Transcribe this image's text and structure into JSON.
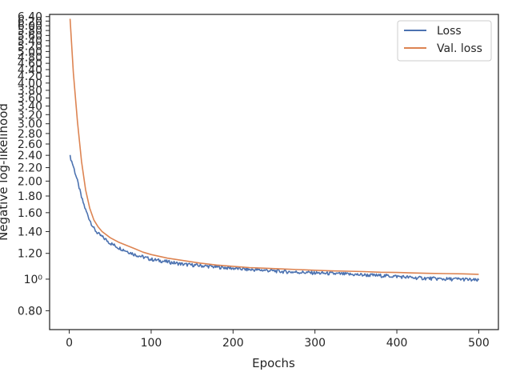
{
  "chart_data": {
    "type": "line",
    "title": "",
    "xlabel": "Epochs",
    "ylabel": "Negative log-likelihood",
    "xlim": [
      -24,
      524
    ],
    "ylim": [
      0.7,
      6.5
    ],
    "y_scale": "log",
    "grid": false,
    "legend_position": "top-right",
    "x_ticks": [
      0,
      100,
      200,
      300,
      400,
      500
    ],
    "x_tick_labels": [
      "0",
      "100",
      "200",
      "300",
      "400",
      "500"
    ],
    "y_ticks": [
      0.8,
      1.0,
      1.2,
      1.4,
      1.6,
      1.8,
      2.0,
      2.2,
      2.4,
      2.6,
      2.8,
      3.0,
      3.2,
      3.4,
      3.6,
      3.8,
      4.0,
      4.2,
      4.4,
      4.6,
      4.8,
      5.0,
      5.2,
      5.4,
      5.6,
      5.8,
      6.0,
      6.2,
      6.4
    ],
    "y_tick_labels": [
      "0.80",
      "10⁰",
      "1.20",
      "1.40",
      "1.60",
      "1.80",
      "2.00",
      "2.20",
      "2.40",
      "2.60",
      "2.80",
      "3.00",
      "3.20",
      "3.40",
      "3.60",
      "3.80",
      "4.00",
      "4.20",
      "4.40",
      "4.60",
      "4.80",
      "5.00",
      "5.20",
      "5.40",
      "5.60",
      "5.80",
      "6.00",
      "6.20",
      "6.40"
    ],
    "series": [
      {
        "name": "Loss",
        "color": "#4c72b0",
        "x": [
          1,
          5,
          10,
          15,
          20,
          25,
          30,
          35,
          40,
          50,
          60,
          70,
          80,
          90,
          100,
          120,
          140,
          160,
          180,
          200,
          220,
          240,
          260,
          280,
          300,
          320,
          340,
          360,
          380,
          400,
          420,
          440,
          460,
          480,
          500
        ],
        "y": [
          2.38,
          2.22,
          2.0,
          1.78,
          1.63,
          1.52,
          1.43,
          1.38,
          1.35,
          1.29,
          1.25,
          1.22,
          1.19,
          1.17,
          1.15,
          1.13,
          1.11,
          1.1,
          1.09,
          1.08,
          1.07,
          1.065,
          1.055,
          1.05,
          1.045,
          1.04,
          1.035,
          1.03,
          1.025,
          1.02,
          1.01,
          1.005,
          1.0,
          1.0,
          0.99
        ]
      },
      {
        "name": "Val. loss",
        "color": "#dd8452",
        "x": [
          1,
          5,
          10,
          15,
          20,
          25,
          30,
          35,
          40,
          50,
          60,
          70,
          80,
          90,
          100,
          120,
          140,
          160,
          180,
          200,
          220,
          240,
          260,
          280,
          300,
          320,
          340,
          360,
          380,
          400,
          420,
          440,
          460,
          480,
          500
        ],
        "y": [
          6.3,
          4.3,
          3.05,
          2.3,
          1.88,
          1.65,
          1.52,
          1.45,
          1.4,
          1.34,
          1.3,
          1.27,
          1.24,
          1.21,
          1.19,
          1.16,
          1.14,
          1.12,
          1.105,
          1.095,
          1.085,
          1.08,
          1.075,
          1.07,
          1.065,
          1.06,
          1.058,
          1.055,
          1.05,
          1.048,
          1.045,
          1.042,
          1.04,
          1.038,
          1.035
        ]
      }
    ]
  }
}
